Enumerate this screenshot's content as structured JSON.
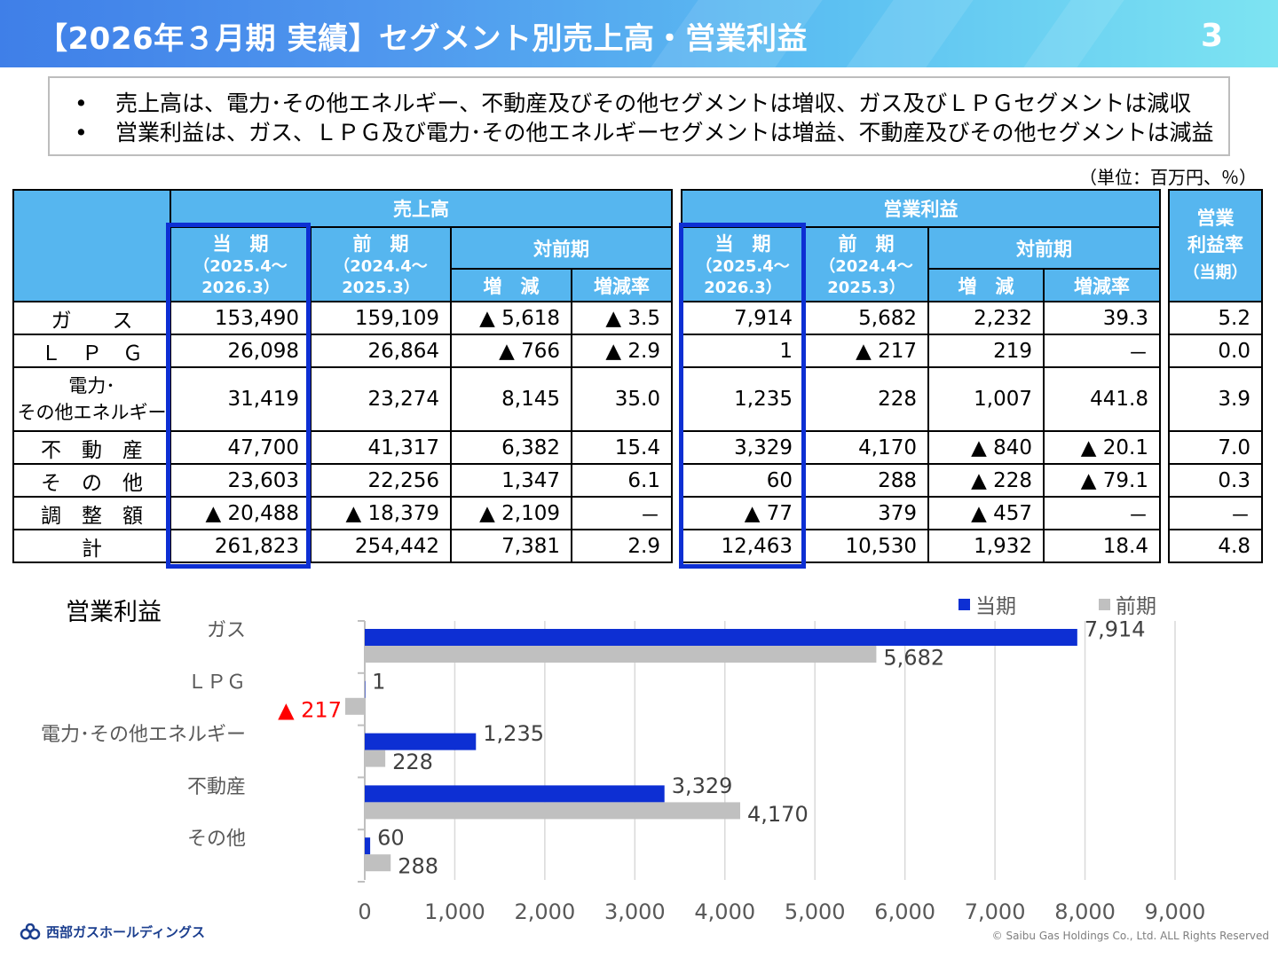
{
  "header": {
    "title": "【2026年３月期 実績】セグメント別売上高・営業利益",
    "page_number": "3"
  },
  "summary": {
    "bullet": "•",
    "lines": [
      "売上高は、電力･その他エネルギー、不動産及びその他セグメントは増収、ガス及びＬＰＧセグメントは減収",
      "営業利益は、ガス、ＬＰＧ及び電力･その他エネルギーセグメントは増益、不動産及びその他セグメントは減益"
    ]
  },
  "unit": "（単位：百万円、％）",
  "table": {
    "sales_header": "売上高",
    "profit_header": "営業利益",
    "margin_header": [
      "営業",
      "利益率",
      "（当期）"
    ],
    "current_label": "当　期",
    "current_period": "（2025.4～",
    "current_period2": "2026.3）",
    "prior_label": "前　期",
    "prior_period": "（2024.4～",
    "prior_period2": "2025.3）",
    "yoy_label": "対前期",
    "change_label": "増　減",
    "rate_label": "増減率",
    "rows": [
      {
        "label": "ガ　　ス",
        "sales": [
          "153,490",
          "159,109",
          "▲ 5,618",
          "▲ 3.5"
        ],
        "profit": [
          "7,914",
          "5,682",
          "2,232",
          "39.3"
        ],
        "margin": "5.2"
      },
      {
        "label": "Ｌ　Ｐ　Ｇ",
        "sales": [
          "26,098",
          "26,864",
          "▲ 766",
          "▲ 2.9"
        ],
        "profit": [
          "1",
          "▲ 217",
          "219",
          "－"
        ],
        "margin": "0.0"
      },
      {
        "label": "電力･",
        "label2": "その他エネルギー",
        "sales": [
          "31,419",
          "23,274",
          "8,145",
          "35.0"
        ],
        "profit": [
          "1,235",
          "228",
          "1,007",
          "441.8"
        ],
        "margin": "3.9"
      },
      {
        "label": "不　動　産",
        "sales": [
          "47,700",
          "41,317",
          "6,382",
          "15.4"
        ],
        "profit": [
          "3,329",
          "4,170",
          "▲ 840",
          "▲ 20.1"
        ],
        "margin": "7.0"
      },
      {
        "label": "そ　の　他",
        "sales": [
          "23,603",
          "22,256",
          "1,347",
          "6.1"
        ],
        "profit": [
          "60",
          "288",
          "▲ 228",
          "▲ 79.1"
        ],
        "margin": "0.3"
      },
      {
        "label": "調　整　額",
        "sales": [
          "▲ 20,488",
          "▲ 18,379",
          "▲ 2,109",
          "－"
        ],
        "profit": [
          "▲ 77",
          "379",
          "▲ 457",
          "－"
        ],
        "margin": "－"
      },
      {
        "label": "計",
        "sales": [
          "261,823",
          "254,442",
          "7,381",
          "2.9"
        ],
        "profit": [
          "12,463",
          "10,530",
          "1,932",
          "18.4"
        ],
        "margin": "4.8"
      }
    ]
  },
  "colors": {
    "current": "#0d2fd3",
    "prior": "#c0c0c0",
    "header_bg": "#56b6ef",
    "negative_label": "#ff0000"
  },
  "chart_data": {
    "type": "bar",
    "orientation": "horizontal",
    "title": "営業利益",
    "categories": [
      "ガス",
      "ＬＰＧ",
      "電力･その他エネルギー",
      "不動産",
      "その他"
    ],
    "series": [
      {
        "name": "当期",
        "values": [
          7914,
          1,
          1235,
          3329,
          60
        ],
        "labels": [
          "7,914",
          "1",
          "1,235",
          "3,329",
          "60"
        ]
      },
      {
        "name": "前期",
        "values": [
          5682,
          -217,
          228,
          4170,
          288
        ],
        "labels": [
          "5,682",
          "▲ 217",
          "228",
          "4,170",
          "288"
        ]
      }
    ],
    "xlim": [
      0,
      9000
    ],
    "xticks": [
      0,
      1000,
      2000,
      3000,
      4000,
      5000,
      6000,
      7000,
      8000,
      9000
    ],
    "xtick_labels": [
      "0",
      "1,000",
      "2,000",
      "3,000",
      "4,000",
      "5,000",
      "6,000",
      "7,000",
      "8,000",
      "9,000"
    ],
    "grid": true,
    "legend": "top-right"
  },
  "footer": {
    "logo_text": "西部ガスホールディングス",
    "copyright": "© Saibu Gas Holdings Co., Ltd. ALL Rights Reserved"
  }
}
